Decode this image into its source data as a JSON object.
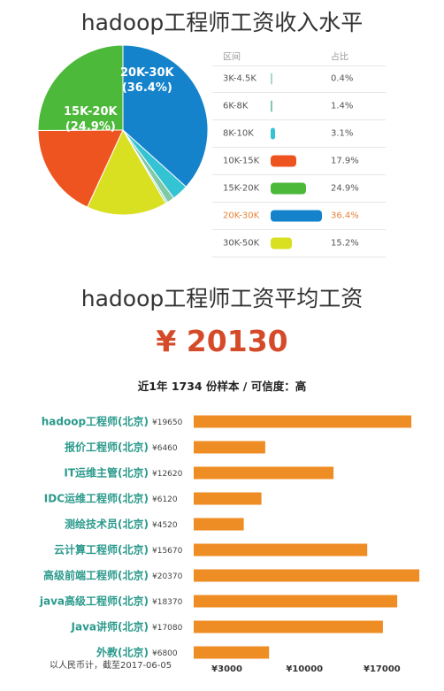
{
  "title_distribution": "hadoop工程师工资收入水平",
  "table_header": {
    "range": "区间",
    "share": "占比"
  },
  "title_average": "hadoop工程师工资平均工资",
  "average_salary": "¥ 20130",
  "sample_note": "近1年 1734 份样本 / 可信度：高",
  "footnote": "以人民币计，截至2017-06-05",
  "pie_labels": [
    {
      "range": "20K-30K",
      "pct": "(36.4%)"
    },
    {
      "range": "15K-20K",
      "pct": "(24.9%)"
    }
  ],
  "chart_data": [
    {
      "type": "pie",
      "title": "hadoop工程师工资收入水平",
      "categories": [
        "3K-4.5K",
        "6K-8K",
        "8K-10K",
        "10K-15K",
        "15K-20K",
        "20K-30K",
        "30K-50K"
      ],
      "values": [
        0.4,
        1.4,
        3.1,
        17.9,
        24.9,
        36.4,
        15.2
      ],
      "labels": [
        "0.4%",
        "1.4%",
        "3.1%",
        "17.9%",
        "24.9%",
        "36.4%",
        "15.2%"
      ],
      "colors": [
        "#a8d8c8",
        "#7fc9a8",
        "#34c3d3",
        "#ee5420",
        "#4db93a",
        "#1583cb",
        "#d9e021"
      ],
      "highlight": "20K-30K",
      "highlight_color": "#e8833a"
    },
    {
      "type": "bar",
      "title": "hadoop工程师工资平均工资",
      "orientation": "horizontal",
      "categories": [
        "hadoop工程师(北京)",
        "报价工程师(北京)",
        "IT运维主管(北京)",
        "IDC运维工程师(北京)",
        "测绘技术员(北京)",
        "云计算工程师(北京)",
        "高级前端工程师(北京)",
        "java高级工程师(北京)",
        "Java讲师(北京)",
        "外教(北京)"
      ],
      "values": [
        19650,
        6460,
        12620,
        6120,
        4520,
        15670,
        20370,
        18370,
        17080,
        6800
      ],
      "value_labels": [
        "¥19650",
        "¥6460",
        "¥12620",
        "¥6120",
        "¥4520",
        "¥15670",
        "¥20370",
        "¥18370",
        "¥17080",
        "¥6800"
      ],
      "x_ticks": [
        3000,
        10000,
        17000
      ],
      "x_tick_labels": [
        "¥3000",
        "¥10000",
        "¥17000"
      ],
      "xlim": [
        0,
        21000
      ],
      "bar_color": "#ef8d25",
      "label_color": "#2b9a8c"
    }
  ]
}
